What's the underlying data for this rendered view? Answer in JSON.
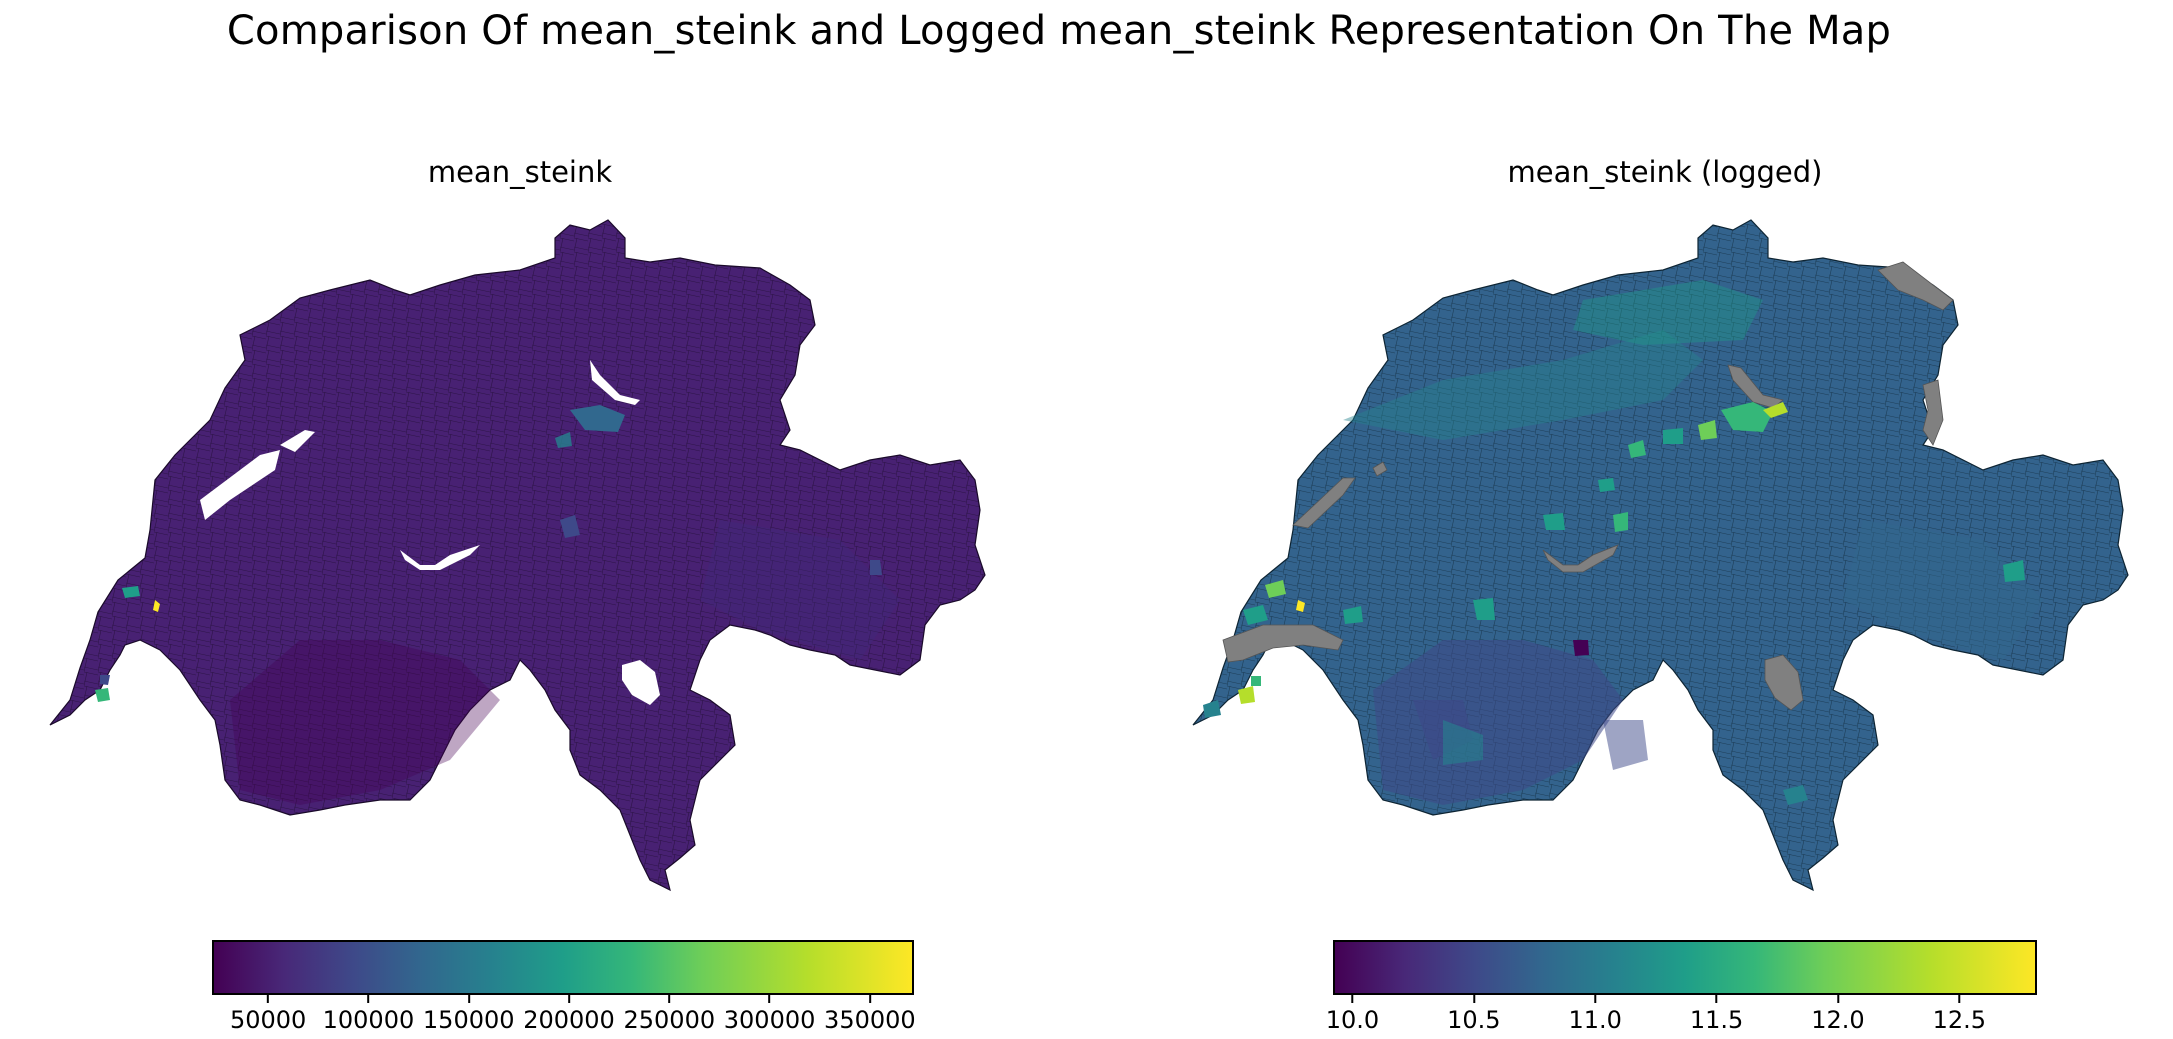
{
  "figure": {
    "title": "Comparison Of mean_steink and Logged mean_steink Representation On The Map"
  },
  "panels": [
    {
      "title": "mean_steink",
      "colormap": "viridis",
      "colorbar": {
        "min": 22000,
        "max": 372000,
        "ticks": [
          "50000",
          "100000",
          "150000",
          "200000",
          "250000",
          "300000",
          "350000"
        ],
        "tick_values": [
          50000,
          100000,
          150000,
          200000,
          250000,
          300000,
          350000
        ]
      },
      "base_fill": "#482173",
      "lake_color": "#ffffff"
    },
    {
      "title": "mean_steink (logged)",
      "colormap": "viridis",
      "colorbar": {
        "min": 9.92,
        "max": 12.82,
        "ticks": [
          "10.0",
          "10.5",
          "11.0",
          "11.5",
          "12.0",
          "12.5"
        ],
        "tick_values": [
          10.0,
          10.5,
          11.0,
          11.5,
          12.0,
          12.5
        ]
      },
      "base_fill": "#33638d",
      "lake_color": "#808080"
    }
  ]
}
